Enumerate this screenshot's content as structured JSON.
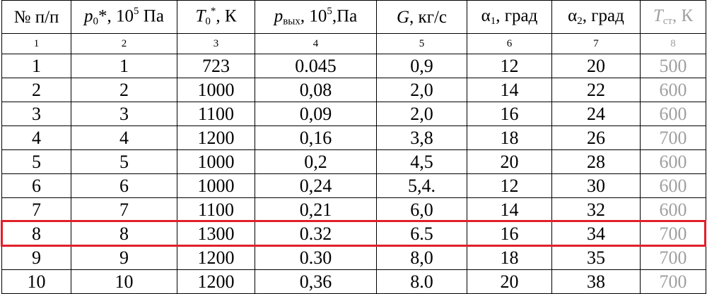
{
  "header": [
    [
      "№ п/п"
    ],
    [
      "p",
      "0",
      "*, 10",
      "5",
      " Па"
    ],
    [
      "T",
      "0",
      "*",
      ", К"
    ],
    [
      "p",
      "вых",
      ", 10",
      "5",
      ",Па"
    ],
    [
      "G",
      ", кг/с"
    ],
    [
      "α",
      "1",
      ", град"
    ],
    [
      "α",
      "2",
      ", град"
    ],
    [
      "T",
      "ст",
      ", К"
    ]
  ],
  "column_numbers": [
    "1",
    "2",
    "3",
    "4",
    "5",
    "6",
    "7",
    "8"
  ],
  "rows": [
    [
      "1",
      "1",
      "723",
      "0.045",
      "0,9",
      "12",
      "20",
      "500"
    ],
    [
      "2",
      "2",
      "1000",
      "0,08",
      "2,0",
      "14",
      "22",
      "600"
    ],
    [
      "3",
      "3",
      "1100",
      "0,09",
      "2,0",
      "16",
      "24",
      "600"
    ],
    [
      "4",
      "4",
      "1200",
      "0,16",
      "3,8",
      "18",
      "26",
      "700"
    ],
    [
      "5",
      "5",
      "1000",
      "0,2",
      "4,5",
      "20",
      "28",
      "600"
    ],
    [
      "6",
      "6",
      "1000",
      "0,24",
      "5,4.",
      "12",
      "30",
      "600"
    ],
    [
      "7",
      "7",
      "1100",
      "0,21",
      "6,0",
      "14",
      "32",
      "600"
    ],
    [
      "8",
      "8",
      "1300",
      "0.32",
      "6.5",
      "16",
      "34",
      "700"
    ],
    [
      "9",
      "9",
      "1200",
      "0.30",
      "8,0",
      "18",
      "35",
      "700"
    ],
    [
      "10",
      "10",
      "1200",
      "0,36",
      "8.0",
      "20",
      "38",
      "700"
    ]
  ]
}
